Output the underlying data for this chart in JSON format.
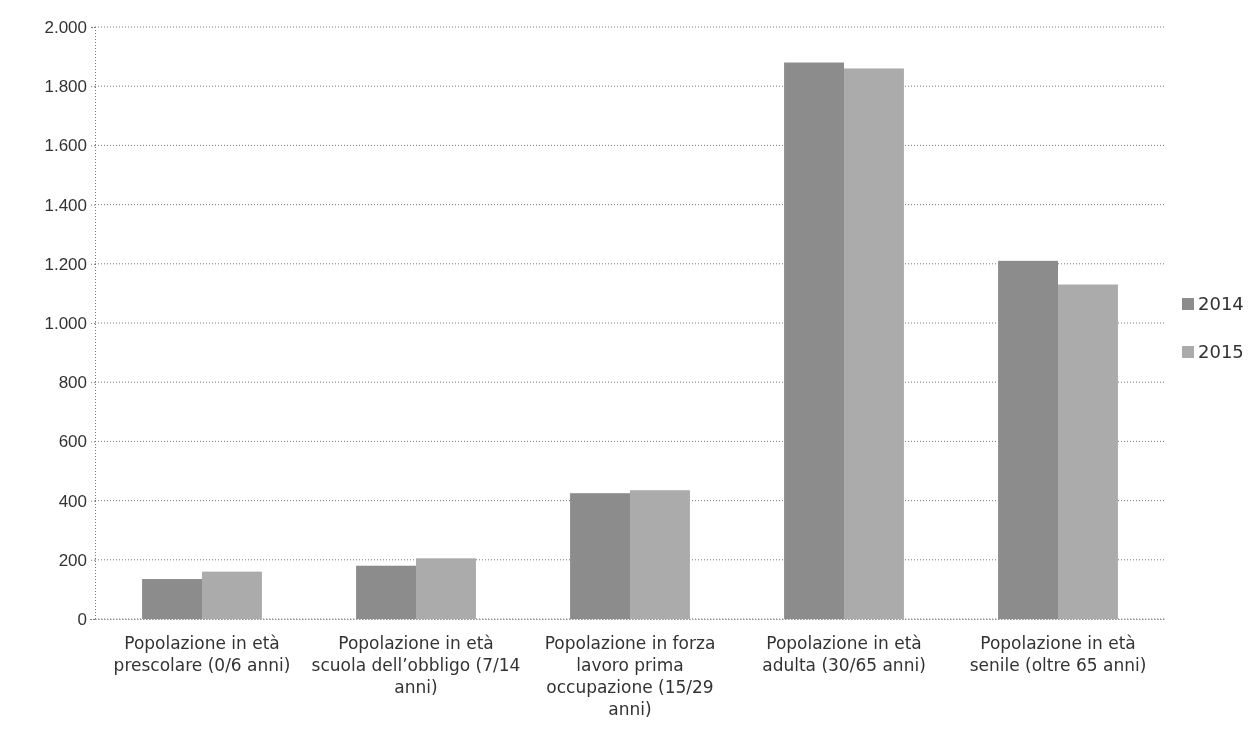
{
  "chart_data": {
    "type": "bar",
    "categories": [
      "Popolazione in età prescolare (0/6 anni)",
      "Popolazione in età scuola dell’obbligo (7/14 anni)",
      "Popolazione in forza lavoro prima occupazione (15/29 anni)",
      "Popolazione in età adulta (30/65 anni)",
      "Popolazione in età senile (oltre 65 anni)"
    ],
    "series": [
      {
        "name": "2014",
        "color": "#8c8c8c",
        "values": [
          135,
          180,
          425,
          1880,
          1210
        ]
      },
      {
        "name": "2015",
        "color": "#ababab",
        "values": [
          160,
          205,
          435,
          1860,
          1130
        ]
      }
    ],
    "ylim": [
      0,
      2000
    ],
    "yticks": [
      0,
      200,
      400,
      600,
      800,
      {
        "value": 1000,
        "label": "1.000"
      },
      {
        "value": 1200,
        "label": "1.200"
      },
      {
        "value": 1400,
        "label": "1.400"
      },
      {
        "value": 1600,
        "label": "1.600"
      },
      {
        "value": 1800,
        "label": "1.800"
      },
      {
        "value": 2000,
        "label": "2.000"
      }
    ],
    "grid": "y",
    "legend": "right"
  }
}
